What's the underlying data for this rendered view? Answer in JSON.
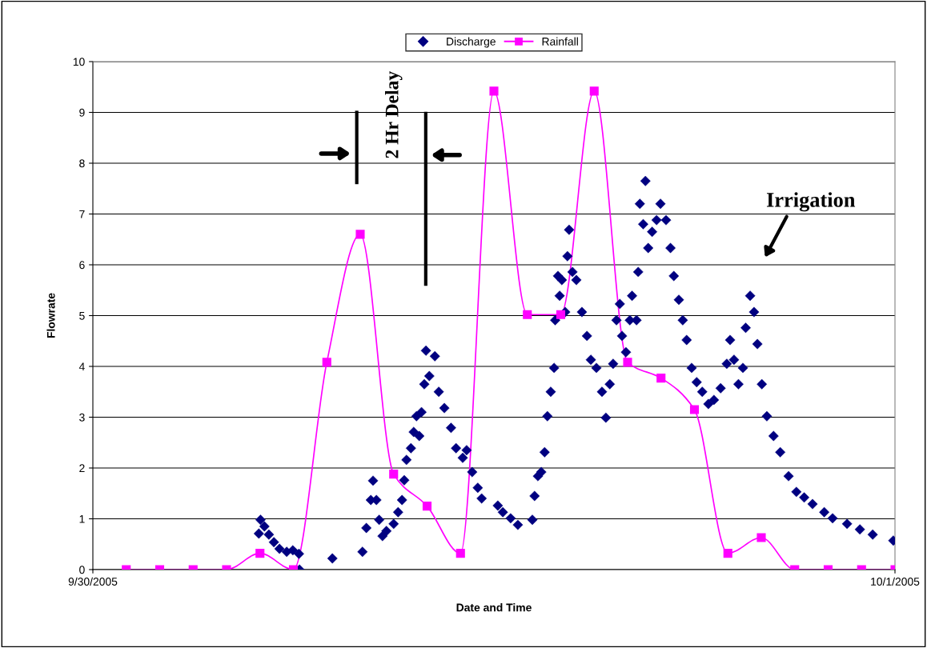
{
  "chart_data": {
    "type": "scatter",
    "xlabel": "Date and Time",
    "ylabel": "Flowrate",
    "xlim": [
      "2005-09-30T00:00",
      "2005-10-01T00:00"
    ],
    "xticks": [
      {
        "value": "2005-09-30T00:00",
        "label": "9/30/2005"
      },
      {
        "value": "2005-10-01T00:00",
        "label": "10/1/2005"
      }
    ],
    "ylim": [
      0,
      10
    ],
    "yticks": [
      0,
      1,
      2,
      3,
      4,
      5,
      6,
      7,
      8,
      9,
      10
    ],
    "grid": "y",
    "legend": "top",
    "annotations": [
      "2 Hr Delay",
      "Irrigation"
    ],
    "series": [
      {
        "name": "Discharge",
        "marker": "diamond",
        "color": "#000080",
        "x": [
          "2005-09-30T04:58",
          "2005-09-30T05:01",
          "2005-09-30T05:08",
          "2005-09-30T05:16",
          "2005-09-30T05:25",
          "2005-09-30T05:35",
          "2005-09-30T05:48",
          "2005-09-30T05:59",
          "2005-09-30T06:10",
          "2005-09-30T06:11",
          "2005-09-30T07:10",
          "2005-09-30T08:04",
          "2005-09-30T08:11",
          "2005-09-30T08:19",
          "2005-09-30T08:23",
          "2005-09-30T08:29",
          "2005-09-30T08:34",
          "2005-09-30T08:40",
          "2005-09-30T08:47",
          "2005-09-30T09:00",
          "2005-09-30T09:08",
          "2005-09-30T09:15",
          "2005-09-30T09:19",
          "2005-09-30T09:23",
          "2005-09-30T09:31",
          "2005-09-30T09:36",
          "2005-09-30T09:41",
          "2005-09-30T09:46",
          "2005-09-30T09:50",
          "2005-09-30T09:55",
          "2005-09-30T09:58",
          "2005-09-30T10:04",
          "2005-09-30T10:14",
          "2005-09-30T10:21",
          "2005-09-30T10:31",
          "2005-09-30T10:43",
          "2005-09-30T10:52",
          "2005-09-30T11:04",
          "2005-09-30T11:11",
          "2005-09-30T11:21",
          "2005-09-30T11:31",
          "2005-09-30T11:38",
          "2005-09-30T12:07",
          "2005-09-30T12:16",
          "2005-09-30T12:30",
          "2005-09-30T12:43",
          "2005-09-30T13:09",
          "2005-09-30T13:13",
          "2005-09-30T13:19",
          "2005-09-30T13:25",
          "2005-09-30T13:31",
          "2005-09-30T13:36",
          "2005-09-30T13:42",
          "2005-09-30T13:48",
          "2005-09-30T13:50",
          "2005-09-30T13:55",
          "2005-09-30T13:58",
          "2005-09-30T14:02",
          "2005-09-30T14:08",
          "2005-09-30T14:12",
          "2005-09-30T14:15",
          "2005-09-30T14:21",
          "2005-09-30T14:28",
          "2005-09-30T14:38",
          "2005-09-30T14:47",
          "2005-09-30T14:54",
          "2005-09-30T15:04",
          "2005-09-30T15:14",
          "2005-09-30T15:21",
          "2005-09-30T15:28",
          "2005-09-30T15:34",
          "2005-09-30T15:40",
          "2005-09-30T15:46",
          "2005-09-30T15:50",
          "2005-09-30T15:57",
          "2005-09-30T16:04",
          "2005-09-30T16:08",
          "2005-09-30T16:16",
          "2005-09-30T16:19",
          "2005-09-30T16:22",
          "2005-09-30T16:28",
          "2005-09-30T16:32",
          "2005-09-30T16:37",
          "2005-09-30T16:44",
          "2005-09-30T16:52",
          "2005-09-30T16:59",
          "2005-09-30T17:09",
          "2005-09-30T17:17",
          "2005-09-30T17:23",
          "2005-09-30T17:32",
          "2005-09-30T17:39",
          "2005-09-30T17:46",
          "2005-09-30T17:55",
          "2005-09-30T18:04",
          "2005-09-30T18:14",
          "2005-09-30T18:25",
          "2005-09-30T18:35",
          "2005-09-30T18:47",
          "2005-09-30T18:58",
          "2005-09-30T19:04",
          "2005-09-30T19:11",
          "2005-09-30T19:19",
          "2005-09-30T19:27",
          "2005-09-30T19:32",
          "2005-09-30T19:40",
          "2005-09-30T19:47",
          "2005-09-30T19:53",
          "2005-09-30T20:01",
          "2005-09-30T20:10",
          "2005-09-30T20:22",
          "2005-09-30T20:34",
          "2005-09-30T20:49",
          "2005-09-30T21:03",
          "2005-09-30T21:17",
          "2005-09-30T21:32",
          "2005-09-30T21:53",
          "2005-09-30T22:08",
          "2005-09-30T22:34",
          "2005-09-30T22:57",
          "2005-09-30T23:20",
          "2005-09-30T23:57"
        ],
        "values": [
          0.71,
          0.98,
          0.85,
          0.69,
          0.54,
          0.41,
          0.35,
          0.38,
          0.31,
          0,
          0.22,
          0.35,
          0.82,
          1.37,
          1.75,
          1.37,
          0.98,
          0.66,
          0.76,
          0.9,
          1.13,
          1.37,
          1.76,
          2.16,
          2.39,
          2.71,
          3.02,
          2.63,
          3.1,
          3.65,
          4.31,
          3.81,
          4.2,
          3.5,
          3.18,
          2.79,
          2.39,
          2.2,
          2.35,
          1.92,
          1.61,
          1.4,
          1.26,
          1.13,
          1.01,
          0.88,
          0.98,
          1.45,
          1.84,
          1.92,
          2.31,
          3.02,
          3.5,
          3.97,
          4.91,
          5.78,
          5.39,
          5.7,
          5.07,
          6.17,
          6.69,
          5.86,
          5.7,
          5.07,
          4.6,
          4.13,
          3.97,
          3.5,
          2.99,
          3.65,
          4.05,
          4.91,
          5.23,
          4.6,
          4.28,
          4.91,
          5.39,
          4.91,
          5.86,
          7.2,
          6.8,
          7.65,
          6.33,
          6.65,
          6.88,
          7.2,
          6.88,
          6.33,
          5.78,
          5.31,
          4.91,
          4.52,
          3.97,
          3.69,
          3.5,
          3.26,
          3.34,
          3.57,
          4.05,
          4.52,
          4.13,
          3.65,
          3.97,
          4.76,
          5.39,
          5.07,
          4.44,
          3.65,
          3.02,
          2.63,
          2.31,
          1.84,
          1.53,
          1.42,
          1.29,
          1.13,
          1.01,
          0.9,
          0.79,
          0.69,
          0.57
        ]
      },
      {
        "name": "Rainfall",
        "type": "line",
        "marker": "square",
        "color": "#ff00ff",
        "x": [
          "2005-09-30T01:00",
          "2005-09-30T02:00",
          "2005-09-30T03:00",
          "2005-09-30T04:00",
          "2005-09-30T05:00",
          "2005-09-30T06:00",
          "2005-09-30T07:00",
          "2005-09-30T08:00",
          "2005-09-30T09:00",
          "2005-09-30T10:00",
          "2005-09-30T11:00",
          "2005-09-30T12:00",
          "2005-09-30T13:00",
          "2005-09-30T14:00",
          "2005-09-30T15:00",
          "2005-09-30T16:00",
          "2005-09-30T17:00",
          "2005-09-30T18:00",
          "2005-09-30T19:00",
          "2005-09-30T20:00",
          "2005-09-30T21:00",
          "2005-09-30T22:00",
          "2005-09-30T23:00",
          "2005-10-01T00:00"
        ],
        "values": [
          0,
          0,
          0,
          0,
          0.32,
          0,
          4.08,
          6.6,
          1.88,
          1.25,
          0.32,
          9.42,
          5.02,
          5.02,
          9.42,
          4.08,
          3.77,
          3.15,
          0.32,
          0.63,
          0,
          0,
          0,
          0
        ]
      }
    ]
  }
}
